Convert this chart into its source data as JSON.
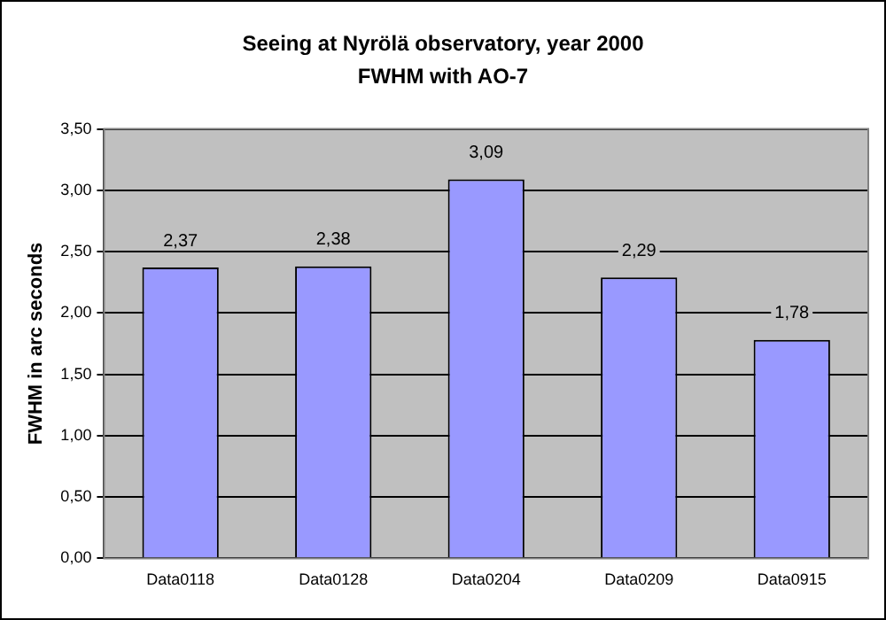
{
  "chart_data": {
    "type": "bar",
    "title": "Seeing at Nyrölä observatory, year 2000",
    "subtitle": "FWHM with AO-7",
    "ylabel": "FWHM in arc seconds",
    "categories": [
      "Data0118",
      "Data0128",
      "Data0204",
      "Data0209",
      "Data0915"
    ],
    "values": [
      2.37,
      2.38,
      3.09,
      2.29,
      1.78
    ],
    "value_labels": [
      "2,37",
      "2,38",
      "3,09",
      "2,29",
      "1,78"
    ],
    "color": "#9999ff",
    "ylim": [
      0,
      3.5
    ],
    "yticks": [
      {
        "value": 0,
        "label": "0,00"
      },
      {
        "value": 0.5,
        "label": "0,50"
      },
      {
        "value": 1,
        "label": "1,00"
      },
      {
        "value": 1.5,
        "label": "1,50"
      },
      {
        "value": 2,
        "label": "2,00"
      },
      {
        "value": 2.5,
        "label": "2,50"
      },
      {
        "value": 3,
        "label": "3,00"
      },
      {
        "value": 3.5,
        "label": "3,50"
      }
    ],
    "grid": "y",
    "legend": false
  }
}
